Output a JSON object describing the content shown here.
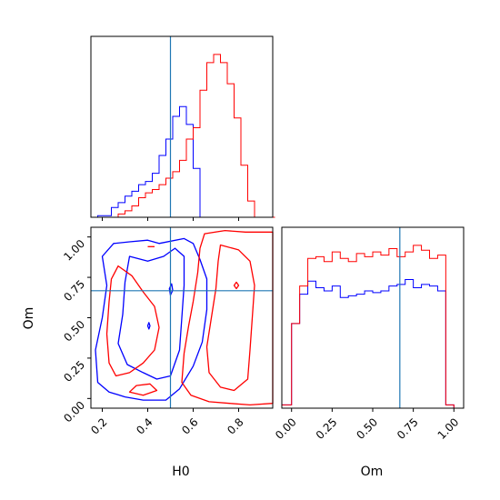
{
  "chart_data": [
    {
      "type": "histogram",
      "panel": "H0 marginal",
      "x_range": [
        0.15,
        0.95
      ],
      "truth_line": 0.5,
      "bin_edges": [
        0.15,
        0.18,
        0.21,
        0.24,
        0.27,
        0.3,
        0.33,
        0.36,
        0.39,
        0.42,
        0.45,
        0.48,
        0.51,
        0.54,
        0.57,
        0.6,
        0.63,
        0.66,
        0.69,
        0.72,
        0.75,
        0.78,
        0.81,
        0.84,
        0.87,
        0.9,
        0.93,
        0.96
      ],
      "series": [
        {
          "color": "#0000ff",
          "counts": [
            0.0,
            0.01,
            0.01,
            0.06,
            0.09,
            0.13,
            0.16,
            0.2,
            0.22,
            0.27,
            0.38,
            0.48,
            0.62,
            0.68,
            0.57,
            0.3,
            0.0,
            0.0,
            0.0,
            0.0,
            0.0,
            0.0,
            0.0,
            0.0,
            0.0,
            0.0,
            0.0
          ]
        },
        {
          "color": "#ff0000",
          "counts": [
            0.0,
            0.0,
            0.0,
            0.0,
            0.02,
            0.04,
            0.07,
            0.12,
            0.15,
            0.17,
            0.2,
            0.24,
            0.28,
            0.35,
            0.48,
            0.55,
            0.78,
            0.95,
            1.0,
            0.95,
            0.82,
            0.61,
            0.32,
            0.1,
            0.0,
            0.0,
            0.0
          ]
        }
      ]
    },
    {
      "type": "contour",
      "panel": "H0 vs Om joint",
      "xlabel": "H0",
      "ylabel": "Om",
      "x_range": [
        0.15,
        0.95
      ],
      "y_range": [
        -0.06,
        1.06
      ],
      "x_ticks": [
        "0.2",
        "0.4",
        "0.6",
        "0.8"
      ],
      "y_ticks": [
        "0.00",
        "0.25",
        "0.50",
        "0.75",
        "1.00"
      ],
      "truth": {
        "x": 0.5,
        "y": 0.667
      },
      "series": [
        {
          "color": "#0000ff",
          "contours": [
            [
              [
                0.25,
                0.96
              ],
              [
                0.32,
                0.97
              ],
              [
                0.4,
                0.98
              ],
              [
                0.45,
                0.96
              ],
              [
                0.56,
                0.99
              ],
              [
                0.6,
                0.96
              ],
              [
                0.63,
                0.86
              ],
              [
                0.66,
                0.74
              ],
              [
                0.66,
                0.55
              ],
              [
                0.64,
                0.35
              ],
              [
                0.6,
                0.2
              ],
              [
                0.54,
                0.06
              ],
              [
                0.48,
                -0.01
              ],
              [
                0.38,
                -0.01
              ],
              [
                0.3,
                0.01
              ],
              [
                0.23,
                0.04
              ],
              [
                0.18,
                0.1
              ],
              [
                0.17,
                0.3
              ],
              [
                0.2,
                0.5
              ],
              [
                0.22,
                0.7
              ],
              [
                0.2,
                0.88
              ]
            ],
            [
              [
                0.32,
                0.88
              ],
              [
                0.4,
                0.85
              ],
              [
                0.47,
                0.88
              ],
              [
                0.52,
                0.93
              ],
              [
                0.56,
                0.88
              ],
              [
                0.56,
                0.7
              ],
              [
                0.55,
                0.5
              ],
              [
                0.54,
                0.3
              ],
              [
                0.5,
                0.14
              ],
              [
                0.44,
                0.12
              ],
              [
                0.38,
                0.16
              ],
              [
                0.31,
                0.21
              ],
              [
                0.27,
                0.34
              ],
              [
                0.29,
                0.52
              ],
              [
                0.3,
                0.72
              ]
            ],
            [
              [
                0.495,
                0.68
              ],
              [
                0.505,
                0.71
              ],
              [
                0.51,
                0.67
              ],
              [
                0.5,
                0.64
              ]
            ],
            [
              [
                0.4,
                0.45
              ],
              [
                0.405,
                0.47
              ],
              [
                0.41,
                0.45
              ],
              [
                0.405,
                0.43
              ]
            ]
          ]
        },
        {
          "color": "#ff0000",
          "contours": [
            [
              [
                0.65,
                1.02
              ],
              [
                0.74,
                1.04
              ],
              [
                0.83,
                1.03
              ],
              [
                0.95,
                1.03
              ],
              [
                0.95,
                -0.03
              ],
              [
                0.85,
                -0.04
              ],
              [
                0.76,
                -0.03
              ],
              [
                0.67,
                -0.02
              ],
              [
                0.59,
                0.02
              ],
              [
                0.55,
                0.1
              ],
              [
                0.56,
                0.28
              ],
              [
                0.58,
                0.45
              ],
              [
                0.6,
                0.6
              ],
              [
                0.62,
                0.78
              ],
              [
                0.63,
                0.93
              ]
            ],
            [
              [
                0.72,
                0.95
              ],
              [
                0.8,
                0.92
              ],
              [
                0.85,
                0.85
              ],
              [
                0.87,
                0.7
              ],
              [
                0.86,
                0.5
              ],
              [
                0.85,
                0.3
              ],
              [
                0.84,
                0.12
              ],
              [
                0.78,
                0.05
              ],
              [
                0.72,
                0.07
              ],
              [
                0.67,
                0.16
              ],
              [
                0.66,
                0.32
              ],
              [
                0.68,
                0.5
              ],
              [
                0.7,
                0.68
              ],
              [
                0.71,
                0.85
              ]
            ],
            [
              [
                0.27,
                0.82
              ],
              [
                0.33,
                0.76
              ],
              [
                0.38,
                0.66
              ],
              [
                0.43,
                0.57
              ],
              [
                0.45,
                0.44
              ],
              [
                0.43,
                0.3
              ],
              [
                0.38,
                0.22
              ],
              [
                0.32,
                0.16
              ],
              [
                0.26,
                0.14
              ],
              [
                0.23,
                0.22
              ],
              [
                0.22,
                0.4
              ],
              [
                0.23,
                0.6
              ],
              [
                0.24,
                0.74
              ]
            ],
            [
              [
                0.32,
                0.04
              ],
              [
                0.38,
                0.02
              ],
              [
                0.44,
                0.05
              ],
              [
                0.41,
                0.09
              ],
              [
                0.35,
                0.08
              ]
            ],
            [
              [
                0.78,
                0.7
              ],
              [
                0.79,
                0.72
              ],
              [
                0.8,
                0.7
              ],
              [
                0.79,
                0.68
              ]
            ],
            [
              [
                0.4,
                0.94
              ],
              [
                0.43,
                0.94
              ]
            ]
          ]
        }
      ]
    },
    {
      "type": "histogram",
      "panel": "Om marginal",
      "xlabel": "Om",
      "x_range": [
        -0.06,
        1.06
      ],
      "x_ticks": [
        "0.00",
        "0.25",
        "0.50",
        "0.75",
        "1.00"
      ],
      "truth_line": 0.667,
      "bin_edges": [
        -0.06,
        0.0,
        0.05,
        0.1,
        0.15,
        0.2,
        0.25,
        0.3,
        0.35,
        0.4,
        0.45,
        0.5,
        0.55,
        0.6,
        0.65,
        0.7,
        0.75,
        0.8,
        0.85,
        0.9,
        0.95,
        1.0,
        1.06
      ],
      "series": [
        {
          "color": "#0000ff",
          "counts": [
            0.02,
            0.52,
            0.7,
            0.78,
            0.74,
            0.72,
            0.75,
            0.68,
            0.69,
            0.7,
            0.72,
            0.71,
            0.72,
            0.75,
            0.76,
            0.79,
            0.74,
            0.76,
            0.75,
            0.72,
            0.02,
            0.0
          ]
        },
        {
          "color": "#ff0000",
          "counts": [
            0.02,
            0.52,
            0.75,
            0.92,
            0.93,
            0.9,
            0.96,
            0.92,
            0.9,
            0.95,
            0.93,
            0.96,
            0.94,
            0.98,
            0.93,
            0.96,
            1.0,
            0.97,
            0.92,
            0.94,
            0.02,
            0.0
          ]
        }
      ]
    }
  ]
}
